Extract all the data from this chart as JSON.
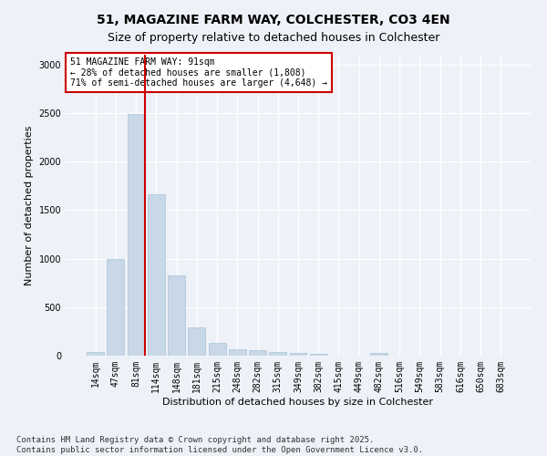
{
  "title": "51, MAGAZINE FARM WAY, COLCHESTER, CO3 4EN",
  "subtitle": "Size of property relative to detached houses in Colchester",
  "xlabel": "Distribution of detached houses by size in Colchester",
  "ylabel": "Number of detached properties",
  "bar_color": "#c8d8e8",
  "bar_edge_color": "#a8c4d8",
  "background_color": "#eef2f8",
  "grid_color": "#ffffff",
  "vline_color": "#cc0000",
  "vline_index": 2,
  "annotation_text": "51 MAGAZINE FARM WAY: 91sqm\n← 28% of detached houses are smaller (1,808)\n71% of semi-detached houses are larger (4,648) →",
  "annotation_box_color": "#ffffff",
  "annotation_box_edge": "#cc0000",
  "categories": [
    "14sqm",
    "47sqm",
    "81sqm",
    "114sqm",
    "148sqm",
    "181sqm",
    "215sqm",
    "248sqm",
    "282sqm",
    "315sqm",
    "349sqm",
    "382sqm",
    "415sqm",
    "449sqm",
    "482sqm",
    "516sqm",
    "549sqm",
    "583sqm",
    "616sqm",
    "650sqm",
    "683sqm"
  ],
  "values": [
    40,
    1000,
    2490,
    1660,
    830,
    290,
    135,
    65,
    60,
    40,
    30,
    20,
    0,
    0,
    30,
    0,
    0,
    0,
    0,
    0,
    0
  ],
  "ylim": [
    0,
    3100
  ],
  "yticks": [
    0,
    500,
    1000,
    1500,
    2000,
    2500,
    3000
  ],
  "footnote": "Contains HM Land Registry data © Crown copyright and database right 2025.\nContains public sector information licensed under the Open Government Licence v3.0.",
  "title_fontsize": 10,
  "subtitle_fontsize": 9,
  "label_fontsize": 8,
  "tick_fontsize": 7,
  "annotation_fontsize": 7,
  "footnote_fontsize": 6.5
}
